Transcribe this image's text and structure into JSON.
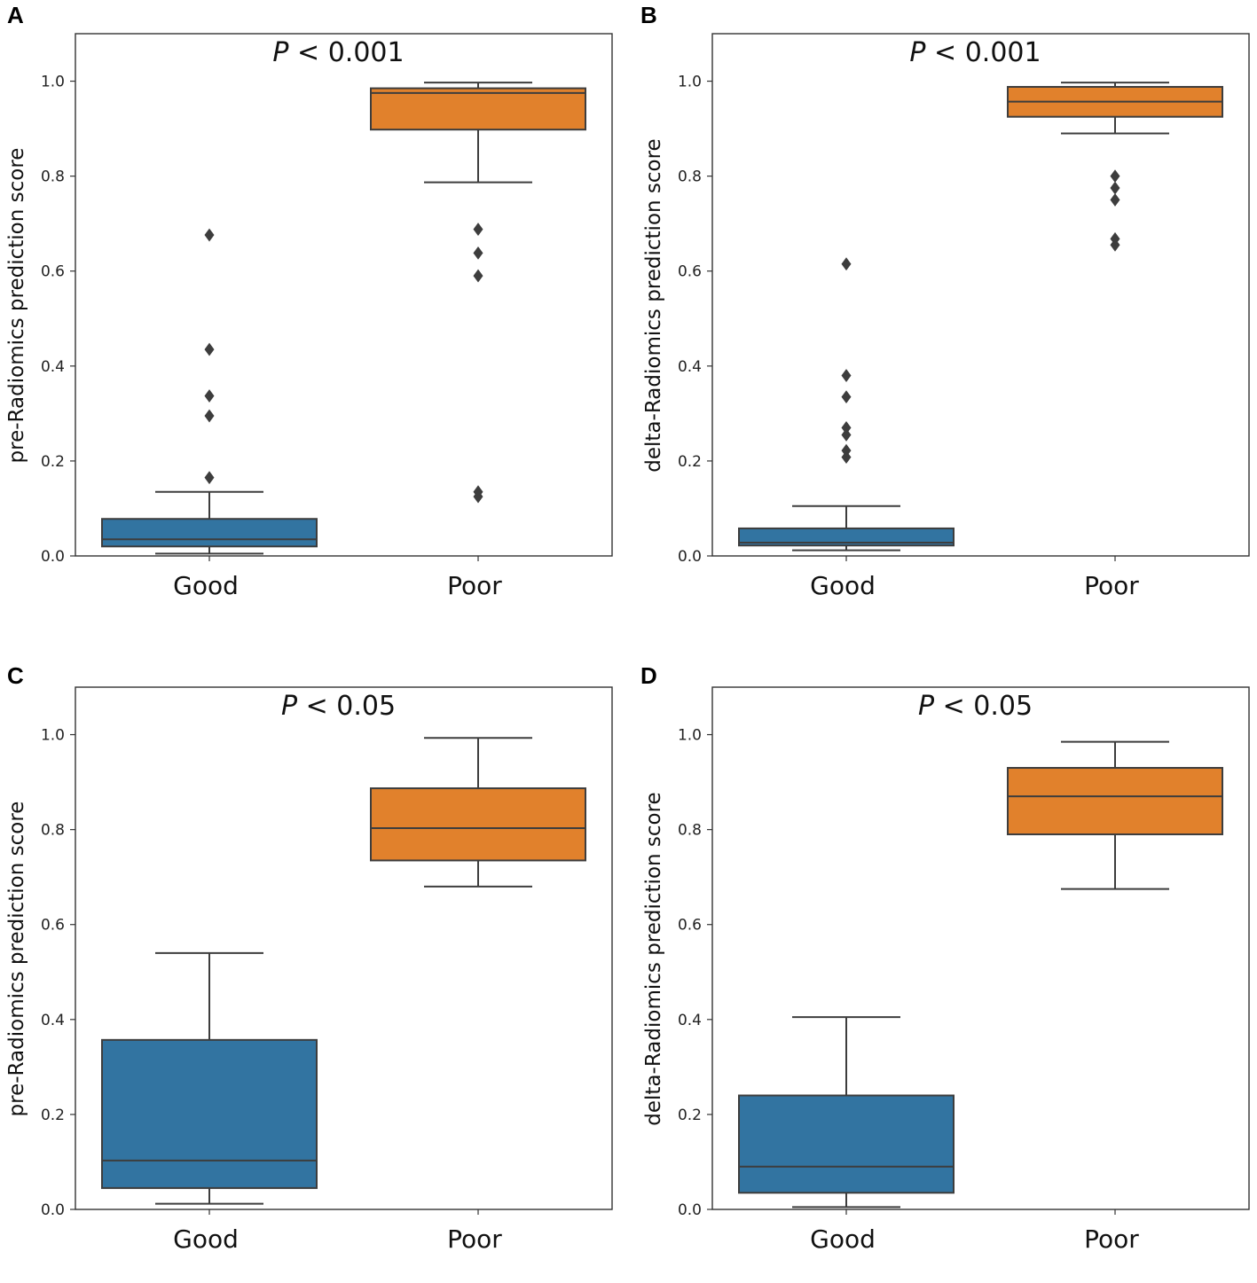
{
  "chart_data": [
    {
      "panel": "A",
      "type": "box",
      "annotation_italic": "P",
      "annotation_rest": " < 0.001",
      "ylabel": "pre-Radiomics prediction score",
      "categories": [
        "Good",
        "Poor"
      ],
      "ylim": [
        0,
        1.1
      ],
      "yticks": [
        "0.0",
        "0.2",
        "0.4",
        "0.6",
        "0.8",
        "1.0"
      ],
      "boxes": [
        {
          "name": "Good",
          "color": "#3274a1",
          "whisker_low": 0.005,
          "q1": 0.02,
          "median": 0.035,
          "q3": 0.078,
          "whisker_high": 0.135,
          "outliers": [
            0.165,
            0.295,
            0.337,
            0.435,
            0.676
          ]
        },
        {
          "name": "Poor",
          "color": "#e1812c",
          "whisker_low": 0.787,
          "q1": 0.898,
          "median": 0.975,
          "q3": 0.985,
          "whisker_high": 0.997,
          "outliers": [
            0.125,
            0.135,
            0.59,
            0.638,
            0.688
          ]
        }
      ]
    },
    {
      "panel": "B",
      "type": "box",
      "annotation_italic": "P",
      "annotation_rest": " < 0.001",
      "ylabel": "delta-Radiomics prediction score",
      "categories": [
        "Good",
        "Poor"
      ],
      "ylim": [
        0,
        1.1
      ],
      "yticks": [
        "0.0",
        "0.2",
        "0.4",
        "0.6",
        "0.8",
        "1.0"
      ],
      "boxes": [
        {
          "name": "Good",
          "color": "#3274a1",
          "whisker_low": 0.012,
          "q1": 0.022,
          "median": 0.028,
          "q3": 0.058,
          "whisker_high": 0.105,
          "outliers": [
            0.208,
            0.222,
            0.255,
            0.27,
            0.335,
            0.38,
            0.615
          ]
        },
        {
          "name": "Poor",
          "color": "#e1812c",
          "whisker_low": 0.89,
          "q1": 0.925,
          "median": 0.957,
          "q3": 0.988,
          "whisker_high": 0.997,
          "outliers": [
            0.655,
            0.668,
            0.75,
            0.775,
            0.8
          ]
        }
      ]
    },
    {
      "panel": "C",
      "type": "box",
      "annotation_italic": "P",
      "annotation_rest": " < 0.05",
      "ylabel": "pre-Radiomics prediction score",
      "categories": [
        "Good",
        "Poor"
      ],
      "ylim": [
        0,
        1.1
      ],
      "yticks": [
        "0.0",
        "0.2",
        "0.4",
        "0.6",
        "0.8",
        "1.0"
      ],
      "boxes": [
        {
          "name": "Good",
          "color": "#3274a1",
          "whisker_low": 0.012,
          "q1": 0.045,
          "median": 0.103,
          "q3": 0.357,
          "whisker_high": 0.54,
          "outliers": []
        },
        {
          "name": "Poor",
          "color": "#e1812c",
          "whisker_low": 0.68,
          "q1": 0.735,
          "median": 0.803,
          "q3": 0.887,
          "whisker_high": 0.993,
          "outliers": []
        }
      ]
    },
    {
      "panel": "D",
      "type": "box",
      "annotation_italic": "P",
      "annotation_rest": " < 0.05",
      "ylabel": "delta-Radiomics prediction score",
      "categories": [
        "Good",
        "Poor"
      ],
      "ylim": [
        0,
        1.1
      ],
      "yticks": [
        "0.0",
        "0.2",
        "0.4",
        "0.6",
        "0.8",
        "1.0"
      ],
      "boxes": [
        {
          "name": "Good",
          "color": "#3274a1",
          "whisker_low": 0.005,
          "q1": 0.035,
          "median": 0.09,
          "q3": 0.24,
          "whisker_high": 0.405,
          "outliers": []
        },
        {
          "name": "Poor",
          "color": "#e1812c",
          "whisker_low": 0.675,
          "q1": 0.79,
          "median": 0.87,
          "q3": 0.93,
          "whisker_high": 0.985,
          "outliers": []
        }
      ]
    }
  ]
}
